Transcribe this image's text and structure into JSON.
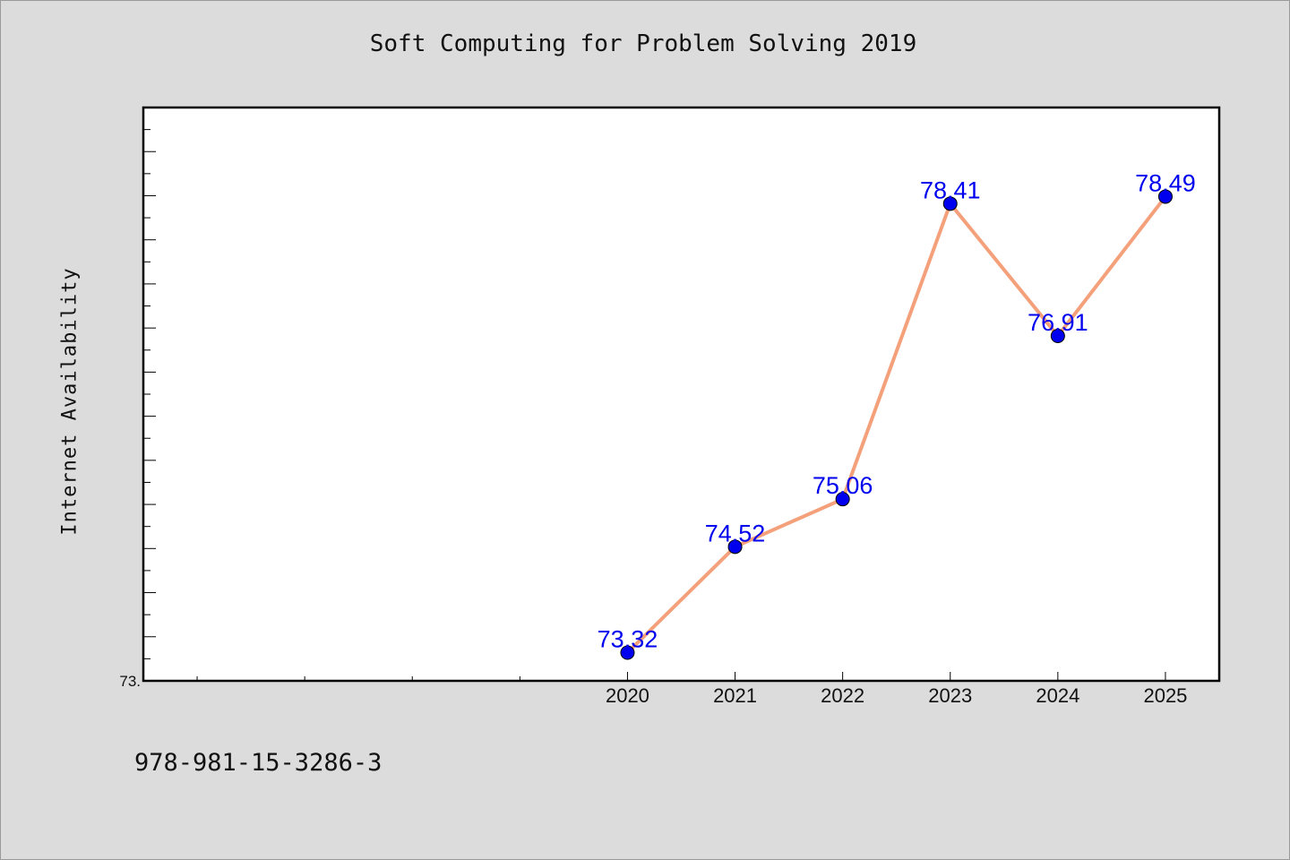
{
  "chart_data": {
    "type": "line",
    "title": "Soft Computing for Problem Solving 2019",
    "xlabel": "",
    "ylabel": "Internet Availability",
    "x": [
      "2020",
      "2021",
      "2022",
      "2023",
      "2024",
      "2025"
    ],
    "series": [
      {
        "values": [
          73.32,
          74.52,
          75.06,
          78.41,
          76.91,
          78.49
        ],
        "line_color": "#f4a07a",
        "marker_color": "#0000ee"
      }
    ],
    "data_labels": [
      "73.32",
      "74.52",
      "75.06",
      "78.41",
      "76.91",
      "78.49"
    ],
    "data_label_color": "#0000ee",
    "ylim": [
      73.0,
      79.5
    ],
    "y_tick_labels": [
      "73."
    ],
    "grid": false,
    "legend": "none"
  },
  "footer": {
    "text": "978-981-15-3286-3"
  }
}
